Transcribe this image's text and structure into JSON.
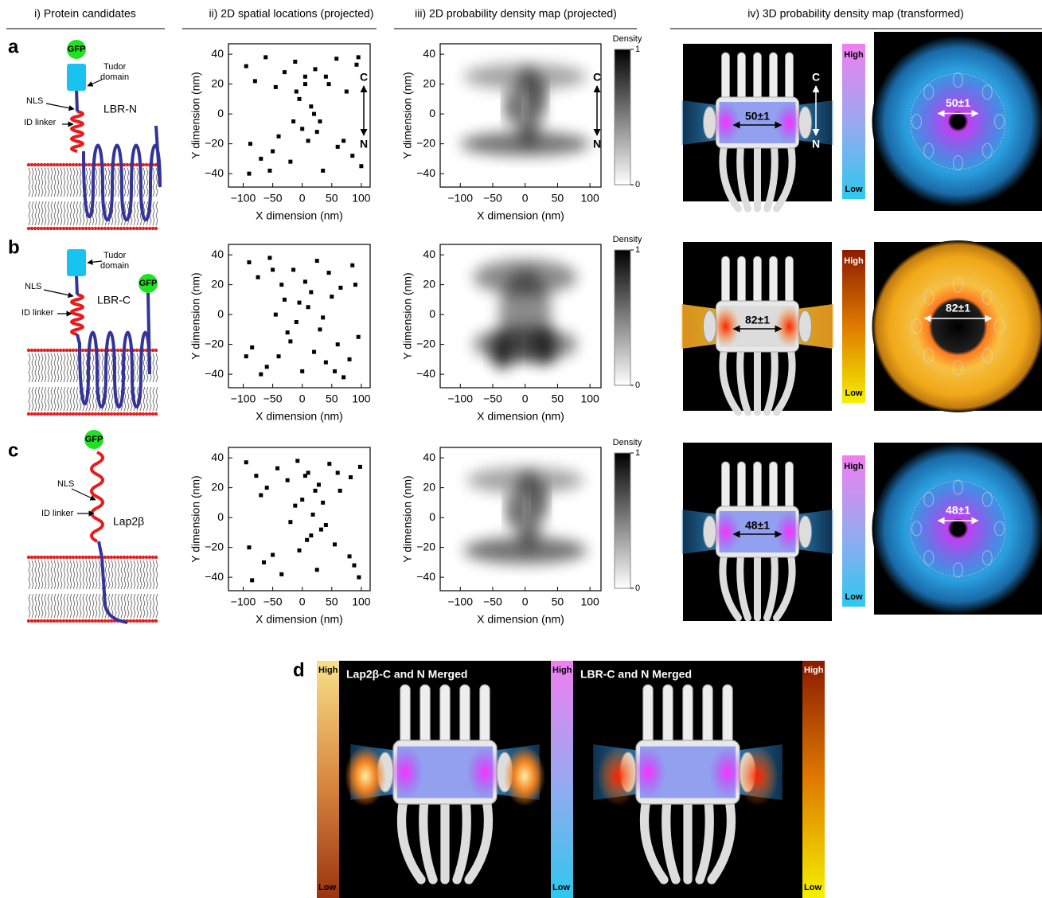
{
  "header": [
    "i) Protein candidates",
    "ii) 2D spatial locations (projected)",
    "iii) 2D probability density map (projected)",
    "iv) 3D probability density map (transformed)"
  ],
  "rows": [
    {
      "label": "a",
      "protein": {
        "name": "LBR-N",
        "gfp": "GFP",
        "tudor": [
          "Tudor",
          "domain"
        ],
        "nls": "NLS",
        "linker": "ID linker"
      },
      "orientation": {
        "top": "C",
        "bottom": "N"
      },
      "measure": "50±1",
      "colorbar": {
        "high": "High",
        "low": "Low"
      }
    },
    {
      "label": "b",
      "protein": {
        "name": "LBR-C",
        "gfp": "GFP",
        "tudor": [
          "Tudor",
          "domain"
        ],
        "nls": "NLS",
        "linker": "ID linker"
      },
      "measure": "82±1",
      "colorbar": {
        "high": "High",
        "low": "Low"
      }
    },
    {
      "label": "c",
      "protein": {
        "name": "Lap2β",
        "gfp": "GFP",
        "nls": "NLS",
        "linker": "ID linker"
      },
      "measure": "48±1",
      "colorbar": {
        "high": "High",
        "low": "Low"
      }
    }
  ],
  "chart_data": [
    {
      "type": "scatter",
      "xlabel": "X dimension (nm)",
      "ylabel": "Y dimension (nm)",
      "x": [
        -95,
        -80,
        -62,
        -45,
        -30,
        -12,
        5,
        22,
        40,
        58,
        75,
        92,
        -88,
        -50,
        -20,
        10,
        35,
        60,
        85,
        100,
        -5,
        15,
        30,
        0,
        20,
        -10,
        25,
        5,
        -90,
        -70,
        -40,
        -15,
        45,
        70,
        95,
        -55
      ],
      "y": [
        32,
        22,
        38,
        18,
        28,
        35,
        20,
        30,
        25,
        37,
        15,
        33,
        -20,
        -25,
        -32,
        -18,
        -38,
        -22,
        -28,
        -35,
        10,
        5,
        -5,
        -10,
        0,
        15,
        -12,
        25,
        -40,
        -30,
        -15,
        -5,
        20,
        -18,
        38,
        -38
      ],
      "xlim": [
        -125,
        115
      ],
      "ylim": [
        -49,
        47
      ],
      "xticks": [
        {
          "value": -100,
          "label": "−100"
        },
        {
          "value": -50,
          "label": "−50"
        },
        0,
        50,
        100
      ],
      "yticks": [
        {
          "value": -40,
          "label": "−40"
        },
        {
          "value": -20,
          "label": "−20"
        },
        0,
        20,
        40
      ]
    },
    {
      "type": "density",
      "xlabel": "X dimension (nm)",
      "ylabel": "Y dimension (nm)",
      "xlim": [
        -131,
        117
      ],
      "ylim": [
        -49,
        47
      ],
      "xticks": [
        {
          "value": -100,
          "label": "−100"
        },
        {
          "value": -50,
          "label": "−50"
        },
        0,
        50,
        100
      ],
      "yticks": [
        {
          "value": -40,
          "label": "−40"
        },
        {
          "value": -20,
          "label": "−20"
        },
        0,
        20,
        40
      ],
      "colorbar": {
        "label": "Density",
        "ticks": [
          0,
          1
        ]
      }
    },
    {
      "type": "scatter",
      "xlabel": "X dimension (nm)",
      "ylabel": "Y dimension (nm)",
      "x": [
        -90,
        -75,
        -55,
        -35,
        -15,
        5,
        25,
        45,
        65,
        85,
        -85,
        -60,
        -40,
        -20,
        0,
        20,
        40,
        60,
        80,
        95,
        -30,
        -10,
        10,
        30,
        -45,
        50,
        -25,
        15,
        -70,
        70,
        -5,
        35,
        -50,
        55,
        90,
        -95
      ],
      "y": [
        35,
        25,
        38,
        20,
        30,
        22,
        36,
        28,
        18,
        33,
        -22,
        -35,
        -28,
        -18,
        -38,
        -25,
        -32,
        -20,
        -30,
        -15,
        10,
        -5,
        5,
        -10,
        0,
        12,
        -12,
        15,
        -40,
        -42,
        8,
        -2,
        30,
        -38,
        20,
        -28
      ],
      "xlim": [
        -125,
        115
      ],
      "ylim": [
        -49,
        47
      ],
      "xticks": [
        {
          "value": -100,
          "label": "−100"
        },
        {
          "value": -50,
          "label": "−50"
        },
        0,
        50,
        100
      ],
      "yticks": [
        {
          "value": -40,
          "label": "−40"
        },
        {
          "value": -20,
          "label": "−20"
        },
        0,
        20,
        40
      ]
    },
    {
      "type": "density",
      "xlabel": "X dimension (nm)",
      "ylabel": "Y dimension (nm)",
      "xlim": [
        -131,
        117
      ],
      "ylim": [
        -49,
        47
      ],
      "xticks": [
        {
          "value": -100,
          "label": "−100"
        },
        {
          "value": -50,
          "label": "−50"
        },
        0,
        50,
        100
      ],
      "yticks": [
        {
          "value": -40,
          "label": "−40"
        },
        {
          "value": -20,
          "label": "−20"
        },
        0,
        20,
        40
      ],
      "colorbar": {
        "label": "Density",
        "ticks": [
          0,
          1
        ]
      }
    },
    {
      "type": "scatter",
      "xlabel": "X dimension (nm)",
      "ylabel": "Y dimension (nm)",
      "x": [
        -95,
        -78,
        -60,
        -42,
        -25,
        -8,
        10,
        28,
        46,
        64,
        82,
        98,
        -90,
        -65,
        -35,
        -5,
        25,
        55,
        80,
        96,
        0,
        18,
        32,
        -12,
        8,
        22,
        40,
        -20,
        -85,
        -50,
        15,
        35,
        60,
        88,
        -70,
        5
      ],
      "y": [
        37,
        28,
        20,
        33,
        25,
        38,
        30,
        22,
        36,
        18,
        27,
        34,
        -20,
        -30,
        -38,
        -22,
        -35,
        -18,
        -26,
        -40,
        12,
        2,
        -8,
        8,
        -15,
        18,
        -5,
        -3,
        -42,
        -25,
        -12,
        10,
        30,
        -32,
        15,
        28
      ],
      "xlim": [
        -125,
        115
      ],
      "ylim": [
        -49,
        47
      ],
      "xticks": [
        {
          "value": -100,
          "label": "−100"
        },
        {
          "value": -50,
          "label": "−50"
        },
        0,
        50,
        100
      ],
      "yticks": [
        {
          "value": -40,
          "label": "−40"
        },
        {
          "value": -20,
          "label": "−20"
        },
        0,
        20,
        40
      ]
    },
    {
      "type": "density",
      "xlabel": "X dimension (nm)",
      "ylabel": "Y dimension (nm)",
      "xlim": [
        -131,
        117
      ],
      "ylim": [
        -49,
        47
      ],
      "xticks": [
        {
          "value": -100,
          "label": "−100"
        },
        {
          "value": -50,
          "label": "−50"
        },
        0,
        50,
        100
      ],
      "yticks": [
        {
          "value": -40,
          "label": "−40"
        },
        {
          "value": -20,
          "label": "−20"
        },
        0,
        20,
        40
      ],
      "colorbar": {
        "label": "Density",
        "ticks": [
          0,
          1
        ]
      }
    }
  ],
  "d": {
    "label": "d",
    "panels": [
      {
        "title": "Lap2β-C and N Merged"
      },
      {
        "title": "LBR-C and N Merged"
      }
    ],
    "colorbars": [
      {
        "high": "High",
        "low": "Low"
      },
      {
        "high": "High",
        "low": "Low"
      },
      {
        "high": "High",
        "low": "Low"
      }
    ]
  }
}
